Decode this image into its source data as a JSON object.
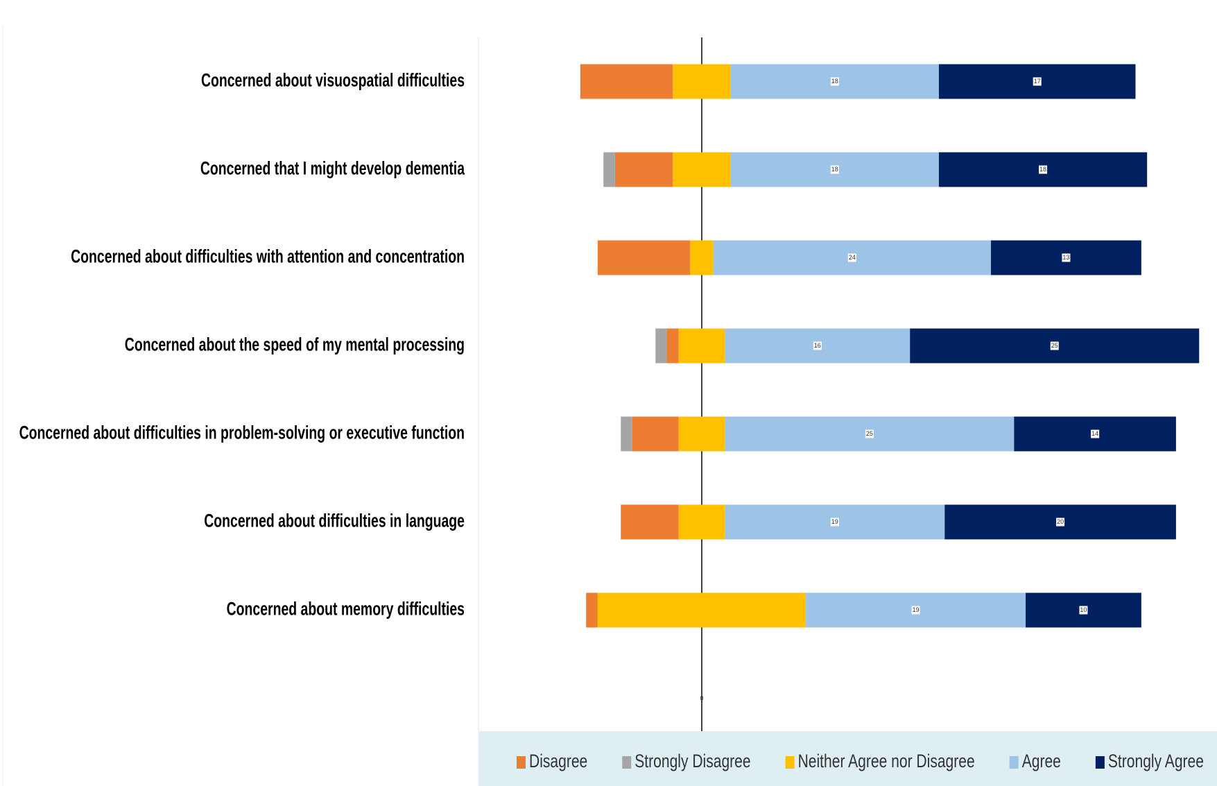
{
  "chart_data": {
    "type": "diverging_bar",
    "categories": [
      "Concerned about visuospatial difficulties",
      "Concerned that I might develop dementia",
      "Concerned about difficulties with attention and concentration",
      "Concerned about the speed of my mental processing",
      "Concerned about difficulties in problem-solving or executive function",
      "Concerned about difficulties in language",
      "Concerned about memory difficulties"
    ],
    "series": [
      {
        "name": "Disagree",
        "color": "#ed7d31",
        "position": "left",
        "values": [
          8,
          5,
          8,
          1,
          4,
          5,
          1
        ]
      },
      {
        "name": "Strongly Disagree",
        "color": "#a5a5a5",
        "position": "left",
        "values": [
          0,
          1,
          0,
          1,
          1,
          0,
          0
        ]
      },
      {
        "name": "Neither Agree nor Disagree",
        "color": "#ffc000",
        "position": "center",
        "values": [
          5,
          5,
          2,
          4,
          4,
          4,
          18
        ]
      },
      {
        "name": "Agree",
        "color": "#9dc3e6",
        "position": "right",
        "show_labels": true,
        "values": [
          18,
          18,
          24,
          16,
          25,
          19,
          19
        ]
      },
      {
        "name": "Strongly Agree",
        "color": "#002060",
        "position": "right",
        "show_labels": true,
        "values": [
          17,
          18,
          13,
          25,
          14,
          20,
          10
        ]
      }
    ],
    "xticks": [
      0
    ]
  }
}
